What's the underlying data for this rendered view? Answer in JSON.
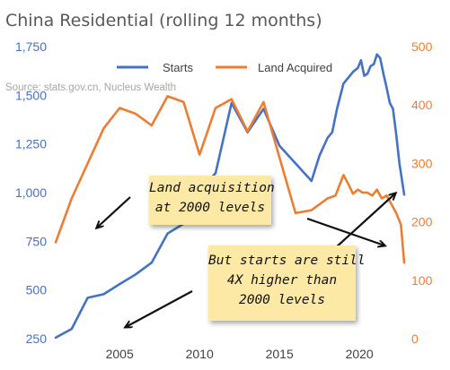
{
  "title": "China Residential (rolling 12 months)",
  "source": "Source: stats.gov.cn, Nucleus Wealth",
  "colors": {
    "starts": "#4472c4",
    "land": "#ed7d31",
    "arrow": "#111111",
    "note_bg": "#fde9a6"
  },
  "annotations": {
    "note1": [
      "Land acquisition",
      "at 2000 levels"
    ],
    "note2": [
      "But starts are still",
      "4X higher than",
      "2000 levels"
    ]
  },
  "chart_data": {
    "type": "line",
    "title": "China Residential (rolling 12 months)",
    "legend": {
      "placement": "top-center",
      "entries": [
        "Starts",
        "Land Acquired"
      ]
    },
    "grid": false,
    "x": {
      "range": [
        2001,
        2022.8
      ],
      "ticks": [
        2005,
        2010,
        2015,
        2020
      ]
    },
    "y_left": {
      "range": [
        250,
        1750
      ],
      "ticks": [
        "250",
        "500",
        "750",
        "1,000",
        "1,250",
        "1,500",
        "1,750"
      ]
    },
    "y_right": {
      "range": [
        0,
        500
      ],
      "ticks": [
        "0",
        "100",
        "200",
        "300",
        "400",
        "500"
      ]
    },
    "series": [
      {
        "name": "Starts",
        "axis": "left",
        "x": [
          2001,
          2002,
          2003,
          2004,
          2005,
          2006,
          2007,
          2008,
          2009,
          2010,
          2011,
          2012,
          2013,
          2014,
          2015,
          2016,
          2017,
          2017.5,
          2018,
          2018.3,
          2018.6,
          2019,
          2019.3,
          2019.6,
          2019.9,
          2020.1,
          2020.3,
          2020.5,
          2020.7,
          2020.9,
          2021.1,
          2021.3,
          2021.5,
          2021.7,
          2021.9,
          2022.1,
          2022.3,
          2022.5,
          2022.8
        ],
        "values": [
          255,
          300,
          460,
          478,
          530,
          580,
          640,
          790,
          840,
          1010,
          1100,
          1460,
          1310,
          1430,
          1240,
          1150,
          1060,
          1190,
          1280,
          1310,
          1430,
          1560,
          1590,
          1620,
          1640,
          1680,
          1600,
          1610,
          1650,
          1660,
          1710,
          1690,
          1610,
          1540,
          1460,
          1430,
          1300,
          1150,
          990
        ]
      },
      {
        "name": "Land Acquired",
        "axis": "right",
        "x": [
          2001,
          2002,
          2003,
          2004,
          2005,
          2006,
          2007,
          2008,
          2009,
          2010,
          2011,
          2012,
          2013,
          2014,
          2015,
          2016,
          2017,
          2018,
          2018.5,
          2019,
          2019.3,
          2019.6,
          2019.9,
          2020.2,
          2020.5,
          2020.8,
          2021.1,
          2021.4,
          2021.7,
          2022,
          2022.3,
          2022.6,
          2022.8
        ],
        "values": [
          165,
          240,
          300,
          360,
          395,
          385,
          365,
          415,
          405,
          315,
          395,
          410,
          355,
          405,
          310,
          215,
          220,
          240,
          245,
          280,
          265,
          248,
          255,
          250,
          250,
          245,
          255,
          240,
          245,
          230,
          215,
          195,
          130
        ]
      }
    ]
  }
}
